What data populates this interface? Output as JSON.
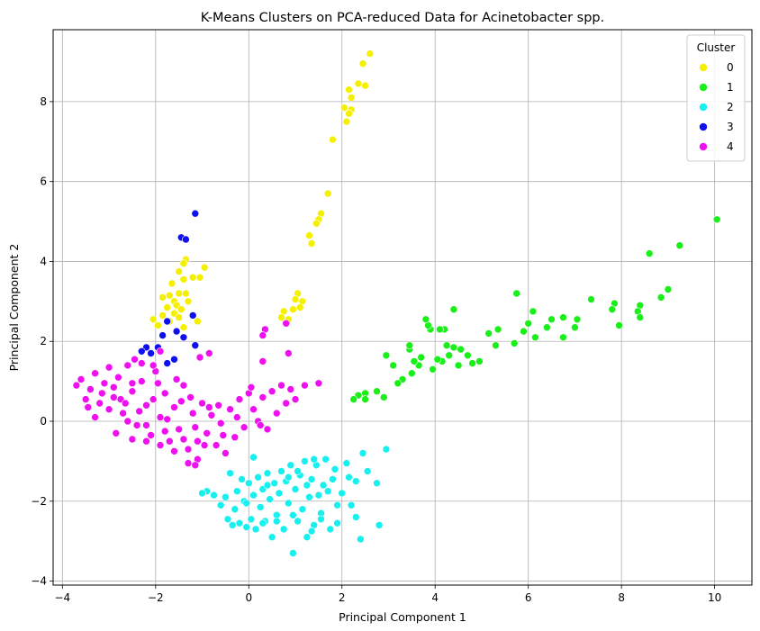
{
  "chart_data": {
    "type": "scatter",
    "title": "K-Means Clusters on PCA-reduced Data for Acinetobacter spp.",
    "xlabel": "Principal Component 1",
    "ylabel": "Principal Component 2",
    "xlim": [
      -4.2,
      10.8
    ],
    "ylim": [
      -4.1,
      9.8
    ],
    "xticks": [
      -4,
      -2,
      0,
      2,
      4,
      6,
      8,
      10
    ],
    "yticks": [
      -4,
      -2,
      0,
      2,
      4,
      6,
      8
    ],
    "grid": true,
    "legend": {
      "title": "Cluster",
      "position": "top-right"
    },
    "series": [
      {
        "name": "0",
        "color": "#f5f000",
        "points": [
          [
            2.6,
            9.2
          ],
          [
            2.45,
            8.95
          ],
          [
            2.35,
            8.45
          ],
          [
            2.5,
            8.4
          ],
          [
            2.15,
            8.3
          ],
          [
            2.2,
            8.1
          ],
          [
            2.05,
            7.85
          ],
          [
            2.2,
            7.8
          ],
          [
            2.15,
            7.7
          ],
          [
            2.1,
            7.5
          ],
          [
            1.8,
            7.05
          ],
          [
            1.7,
            5.7
          ],
          [
            1.55,
            5.2
          ],
          [
            1.5,
            5.05
          ],
          [
            1.45,
            4.95
          ],
          [
            1.3,
            4.65
          ],
          [
            1.35,
            4.45
          ],
          [
            1.05,
            3.2
          ],
          [
            1.0,
            3.05
          ],
          [
            1.15,
            3.0
          ],
          [
            1.1,
            2.85
          ],
          [
            0.95,
            2.8
          ],
          [
            0.75,
            2.75
          ],
          [
            0.7,
            2.6
          ],
          [
            0.85,
            2.55
          ],
          [
            -1.35,
            4.05
          ],
          [
            -1.4,
            3.95
          ],
          [
            -1.5,
            3.75
          ],
          [
            -1.2,
            3.6
          ],
          [
            -1.4,
            3.55
          ],
          [
            -1.65,
            3.45
          ],
          [
            -0.95,
            3.85
          ],
          [
            -1.05,
            3.6
          ],
          [
            -1.5,
            3.2
          ],
          [
            -1.35,
            3.2
          ],
          [
            -1.7,
            3.15
          ],
          [
            -1.85,
            3.1
          ],
          [
            -1.6,
            3.0
          ],
          [
            -1.3,
            3.0
          ],
          [
            -1.55,
            2.9
          ],
          [
            -1.75,
            2.85
          ],
          [
            -1.45,
            2.8
          ],
          [
            -1.6,
            2.7
          ],
          [
            -1.85,
            2.65
          ],
          [
            -2.05,
            2.55
          ],
          [
            -1.5,
            2.6
          ],
          [
            -1.7,
            2.5
          ],
          [
            -1.95,
            2.4
          ],
          [
            -1.1,
            2.5
          ],
          [
            -1.4,
            2.35
          ]
        ]
      },
      {
        "name": "1",
        "color": "#1aef1a",
        "points": [
          [
            10.05,
            5.05
          ],
          [
            9.25,
            4.4
          ],
          [
            8.6,
            4.2
          ],
          [
            9.0,
            3.3
          ],
          [
            8.85,
            3.1
          ],
          [
            8.4,
            2.9
          ],
          [
            8.35,
            2.75
          ],
          [
            8.4,
            2.6
          ],
          [
            7.95,
            2.4
          ],
          [
            7.85,
            2.95
          ],
          [
            7.8,
            2.8
          ],
          [
            7.35,
            3.05
          ],
          [
            7.05,
            2.55
          ],
          [
            7.0,
            2.35
          ],
          [
            6.75,
            2.6
          ],
          [
            6.75,
            2.1
          ],
          [
            6.5,
            2.55
          ],
          [
            6.4,
            2.35
          ],
          [
            6.1,
            2.75
          ],
          [
            6.15,
            2.1
          ],
          [
            6.0,
            2.45
          ],
          [
            5.9,
            2.25
          ],
          [
            5.75,
            3.2
          ],
          [
            5.7,
            1.95
          ],
          [
            5.35,
            2.3
          ],
          [
            5.3,
            1.9
          ],
          [
            5.15,
            2.2
          ],
          [
            4.95,
            1.5
          ],
          [
            4.8,
            1.45
          ],
          [
            4.7,
            1.65
          ],
          [
            4.55,
            1.8
          ],
          [
            4.4,
            2.8
          ],
          [
            4.4,
            1.85
          ],
          [
            4.3,
            1.65
          ],
          [
            4.2,
            2.3
          ],
          [
            4.1,
            2.3
          ],
          [
            4.15,
            1.5
          ],
          [
            4.05,
            1.55
          ],
          [
            3.95,
            1.3
          ],
          [
            3.9,
            2.3
          ],
          [
            3.85,
            2.4
          ],
          [
            3.8,
            2.55
          ],
          [
            3.7,
            1.6
          ],
          [
            3.65,
            1.4
          ],
          [
            3.55,
            1.5
          ],
          [
            3.45,
            1.8
          ],
          [
            3.45,
            1.9
          ],
          [
            3.3,
            1.05
          ],
          [
            3.2,
            0.95
          ],
          [
            3.1,
            1.4
          ],
          [
            2.95,
            1.65
          ],
          [
            2.9,
            0.6
          ],
          [
            2.75,
            0.75
          ],
          [
            2.5,
            0.7
          ],
          [
            2.5,
            0.55
          ],
          [
            2.35,
            0.65
          ],
          [
            2.25,
            0.55
          ],
          [
            3.5,
            1.2
          ],
          [
            4.5,
            1.4
          ],
          [
            4.25,
            1.9
          ]
        ]
      },
      {
        "name": "2",
        "color": "#18f0f0",
        "points": [
          [
            2.95,
            -0.7
          ],
          [
            2.75,
            -1.55
          ],
          [
            2.8,
            -2.6
          ],
          [
            2.45,
            -0.8
          ],
          [
            2.4,
            -2.95
          ],
          [
            2.3,
            -1.5
          ],
          [
            2.2,
            -2.1
          ],
          [
            2.1,
            -1.05
          ],
          [
            2.0,
            -1.8
          ],
          [
            1.9,
            -2.55
          ],
          [
            1.85,
            -1.2
          ],
          [
            1.75,
            -2.7
          ],
          [
            1.65,
            -0.95
          ],
          [
            1.6,
            -1.6
          ],
          [
            1.55,
            -2.3
          ],
          [
            1.45,
            -1.1
          ],
          [
            1.4,
            -2.6
          ],
          [
            1.35,
            -1.45
          ],
          [
            1.3,
            -1.9
          ],
          [
            1.25,
            -2.9
          ],
          [
            1.2,
            -1.0
          ],
          [
            1.15,
            -2.2
          ],
          [
            1.1,
            -1.35
          ],
          [
            1.05,
            -2.5
          ],
          [
            1.0,
            -1.7
          ],
          [
            0.95,
            -3.3
          ],
          [
            0.9,
            -1.1
          ],
          [
            0.85,
            -2.05
          ],
          [
            0.8,
            -1.5
          ],
          [
            0.75,
            -2.7
          ],
          [
            0.7,
            -1.25
          ],
          [
            0.65,
            -1.8
          ],
          [
            0.6,
            -2.35
          ],
          [
            0.55,
            -1.55
          ],
          [
            0.5,
            -2.9
          ],
          [
            0.45,
            -1.95
          ],
          [
            0.4,
            -1.3
          ],
          [
            0.35,
            -2.5
          ],
          [
            0.3,
            -1.7
          ],
          [
            0.25,
            -2.15
          ],
          [
            0.2,
            -1.4
          ],
          [
            0.15,
            -2.7
          ],
          [
            0.1,
            -1.85
          ],
          [
            0.05,
            -2.45
          ],
          [
            0.0,
            -1.55
          ],
          [
            -0.05,
            -2.65
          ],
          [
            -0.1,
            -2.0
          ],
          [
            -0.15,
            -1.45
          ],
          [
            -0.2,
            -2.55
          ],
          [
            -0.25,
            -1.75
          ],
          [
            -0.3,
            -2.2
          ],
          [
            -0.35,
            -2.6
          ],
          [
            -0.4,
            -1.3
          ],
          [
            -0.5,
            -1.9
          ],
          [
            -0.6,
            -2.1
          ],
          [
            -0.75,
            -1.85
          ],
          [
            -0.9,
            -1.75
          ],
          [
            -1.0,
            -1.8
          ],
          [
            -0.45,
            -2.45
          ],
          [
            0.1,
            -0.9
          ],
          [
            1.4,
            -0.95
          ],
          [
            1.8,
            -1.45
          ],
          [
            1.5,
            -1.85
          ],
          [
            1.9,
            -2.1
          ],
          [
            0.95,
            -2.35
          ],
          [
            1.35,
            -2.75
          ],
          [
            0.6,
            -2.5
          ],
          [
            1.7,
            -1.75
          ],
          [
            2.15,
            -1.4
          ],
          [
            2.55,
            -1.25
          ],
          [
            1.05,
            -1.25
          ],
          [
            1.25,
            -1.6
          ],
          [
            0.85,
            -1.4
          ],
          [
            0.4,
            -1.6
          ],
          [
            -0.05,
            -2.05
          ],
          [
            0.3,
            -2.55
          ],
          [
            1.55,
            -2.45
          ],
          [
            2.3,
            -2.4
          ]
        ]
      },
      {
        "name": "3",
        "color": "#1010ee",
        "points": [
          [
            -1.15,
            5.2
          ],
          [
            -1.45,
            4.6
          ],
          [
            -1.35,
            4.55
          ],
          [
            -1.2,
            2.65
          ],
          [
            -1.75,
            2.5
          ],
          [
            -1.55,
            2.25
          ],
          [
            -1.85,
            2.15
          ],
          [
            -1.4,
            2.1
          ],
          [
            -1.15,
            1.9
          ],
          [
            -2.2,
            1.85
          ],
          [
            -2.1,
            1.7
          ],
          [
            -1.6,
            1.55
          ],
          [
            -1.75,
            1.45
          ],
          [
            -1.95,
            1.85
          ],
          [
            -2.3,
            1.75
          ]
        ]
      },
      {
        "name": "4",
        "color": "#ee10ee",
        "points": [
          [
            -3.7,
            0.9
          ],
          [
            -3.6,
            1.05
          ],
          [
            -3.5,
            0.55
          ],
          [
            -3.4,
            0.8
          ],
          [
            -3.3,
            1.2
          ],
          [
            -3.2,
            0.45
          ],
          [
            -3.1,
            0.95
          ],
          [
            -3.0,
            1.35
          ],
          [
            -2.9,
            0.6
          ],
          [
            -2.8,
            1.1
          ],
          [
            -2.7,
            0.2
          ],
          [
            -2.6,
            1.4
          ],
          [
            -2.5,
            0.75
          ],
          [
            -2.4,
            -0.1
          ],
          [
            -2.3,
            1.0
          ],
          [
            -2.2,
            0.4
          ],
          [
            -2.1,
            -0.35
          ],
          [
            -2.0,
            1.25
          ],
          [
            -1.9,
            0.1
          ],
          [
            -1.8,
            0.7
          ],
          [
            -1.7,
            -0.5
          ],
          [
            -1.6,
            0.35
          ],
          [
            -1.5,
            -0.2
          ],
          [
            -1.4,
            0.9
          ],
          [
            -1.3,
            -0.7
          ],
          [
            -1.2,
            0.2
          ],
          [
            -1.1,
            -0.95
          ],
          [
            -1.0,
            0.45
          ],
          [
            -0.9,
            -0.3
          ],
          [
            -0.8,
            0.15
          ],
          [
            -0.7,
            -0.6
          ],
          [
            -0.6,
            -0.05
          ],
          [
            -0.5,
            -0.8
          ],
          [
            -0.4,
            0.3
          ],
          [
            -0.3,
            -0.4
          ],
          [
            -0.2,
            0.55
          ],
          [
            -0.1,
            -0.15
          ],
          [
            0.0,
            0.7
          ],
          [
            0.1,
            0.3
          ],
          [
            0.2,
            0.0
          ],
          [
            0.3,
            0.6
          ],
          [
            0.4,
            -0.2
          ],
          [
            0.5,
            0.75
          ],
          [
            0.6,
            0.2
          ],
          [
            0.7,
            0.9
          ],
          [
            0.8,
            0.45
          ],
          [
            0.9,
            0.8
          ],
          [
            1.0,
            0.55
          ],
          [
            1.2,
            0.9
          ],
          [
            1.5,
            0.95
          ],
          [
            0.85,
            1.7
          ],
          [
            0.8,
            2.45
          ],
          [
            0.35,
            2.3
          ],
          [
            0.3,
            2.15
          ],
          [
            0.3,
            1.5
          ],
          [
            -0.85,
            1.7
          ],
          [
            -1.05,
            1.6
          ],
          [
            -1.9,
            1.75
          ],
          [
            -2.3,
            1.45
          ],
          [
            -2.5,
            0.95
          ],
          [
            -2.75,
            0.55
          ],
          [
            -3.0,
            0.3
          ],
          [
            -2.85,
            -0.3
          ],
          [
            -2.5,
            -0.45
          ],
          [
            -2.2,
            -0.5
          ],
          [
            -1.9,
            -0.6
          ],
          [
            -1.6,
            -0.75
          ],
          [
            -1.3,
            -1.05
          ],
          [
            -1.15,
            -1.1
          ],
          [
            -2.35,
            0.25
          ],
          [
            -2.05,
            0.55
          ],
          [
            -1.75,
            0.05
          ],
          [
            -1.45,
            0.5
          ],
          [
            -1.15,
            -0.15
          ],
          [
            -0.85,
            0.35
          ],
          [
            -0.55,
            -0.35
          ],
          [
            -0.25,
            0.1
          ],
          [
            -3.3,
            0.1
          ],
          [
            -3.15,
            0.7
          ],
          [
            -2.65,
            0.45
          ],
          [
            -1.55,
            1.05
          ],
          [
            -2.45,
            1.55
          ],
          [
            -1.95,
            0.95
          ],
          [
            -1.25,
            0.6
          ],
          [
            -0.95,
            -0.6
          ],
          [
            -0.65,
            0.4
          ],
          [
            0.05,
            0.85
          ],
          [
            0.25,
            -0.1
          ],
          [
            -2.2,
            -0.1
          ],
          [
            -2.6,
            0.0
          ],
          [
            -1.8,
            -0.25
          ],
          [
            -1.4,
            -0.45
          ],
          [
            -1.1,
            -0.5
          ],
          [
            -2.9,
            0.85
          ],
          [
            -3.45,
            0.35
          ],
          [
            -2.05,
            1.4
          ]
        ]
      }
    ]
  }
}
